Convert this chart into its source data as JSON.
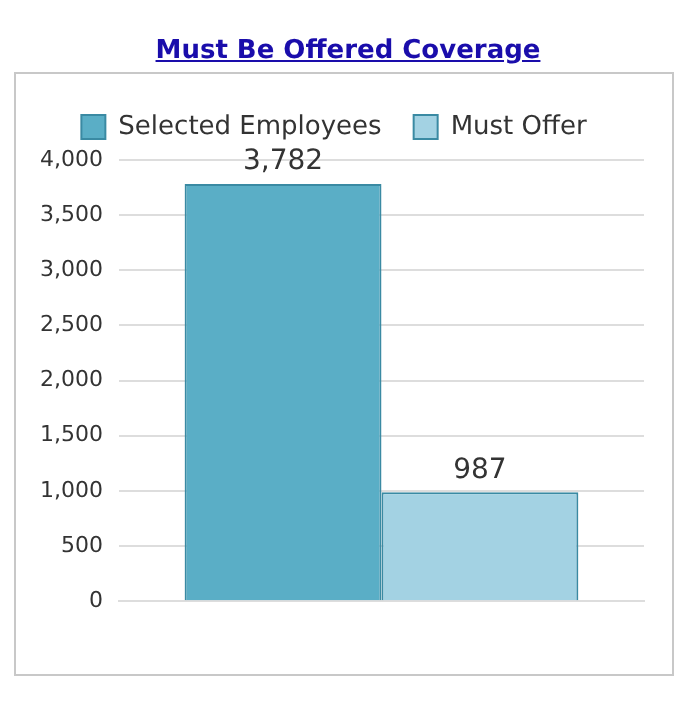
{
  "chart_data": {
    "type": "bar",
    "title": "Must Be Offered Coverage",
    "categories": [
      null
    ],
    "series": [
      {
        "name": "Selected Employees",
        "color": "#5aaec6",
        "values": [
          3782
        ],
        "value_labels": [
          "3,782"
        ]
      },
      {
        "name": "Must Offer",
        "color": "#a3d2e3",
        "values": [
          987
        ],
        "value_labels": [
          "987"
        ]
      }
    ],
    "ylim": [
      0,
      4000
    ],
    "yticks": [
      0,
      {
        "value": 500,
        "label": "500"
      },
      {
        "value": 1000,
        "label": "1,000"
      },
      {
        "value": 1500,
        "label": "1,500"
      },
      {
        "value": 2000,
        "label": "2,000"
      },
      {
        "value": 2500,
        "label": "2,500"
      },
      {
        "value": 3000,
        "label": "3,000"
      },
      {
        "value": 3500,
        "label": "3,500"
      },
      {
        "value": 4000,
        "label": "4,000"
      }
    ],
    "grid": "y",
    "legend": "top"
  }
}
